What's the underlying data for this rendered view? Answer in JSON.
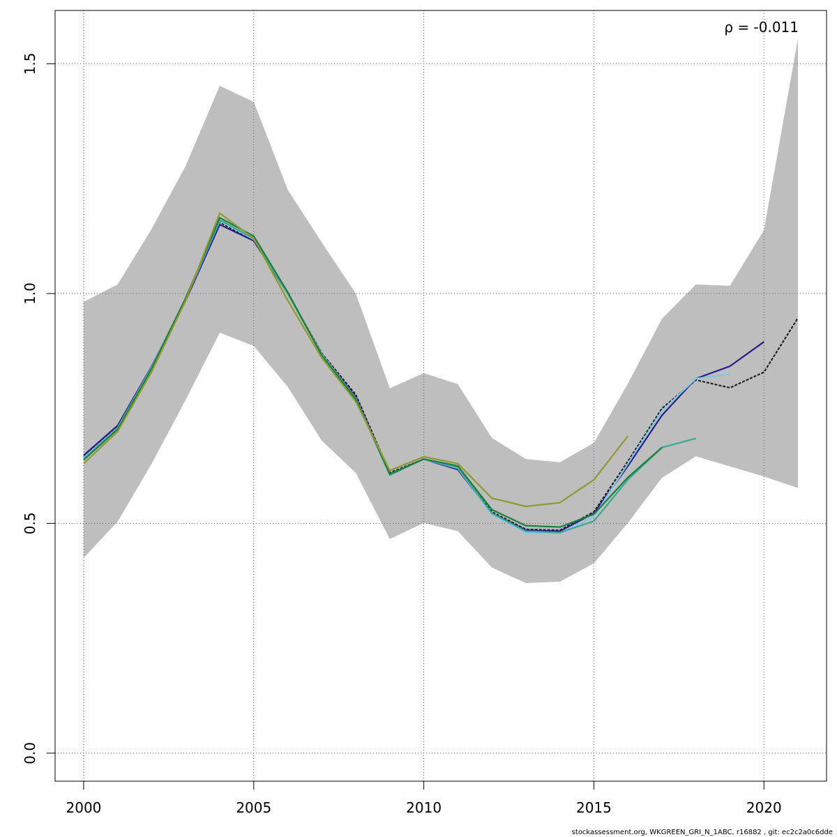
{
  "chart_data": {
    "type": "line",
    "annotation": "ρ = -0.011",
    "footer": "stockassessment.org, WKGREEN_GRI_N_1ABC, r16882 , git: ec2c2a0c6dde",
    "x": [
      2000,
      2001,
      2002,
      2003,
      2004,
      2005,
      2006,
      2007,
      2008,
      2009,
      2010,
      2011,
      2012,
      2013,
      2014,
      2015,
      2016,
      2017,
      2018,
      2019,
      2020,
      2021
    ],
    "band": {
      "color": "#bebebe",
      "upper": [
        0.982,
        1.02,
        1.141,
        1.278,
        1.452,
        1.417,
        1.226,
        1.111,
        1.0,
        0.794,
        0.827,
        0.803,
        0.686,
        0.64,
        0.633,
        0.675,
        0.804,
        0.945,
        1.02,
        1.017,
        1.138,
        1.555
      ],
      "lower": [
        0.425,
        0.504,
        0.63,
        0.769,
        0.915,
        0.886,
        0.797,
        0.68,
        0.61,
        0.466,
        0.501,
        0.483,
        0.404,
        0.37,
        0.373,
        0.413,
        0.501,
        0.599,
        0.646,
        0.624,
        0.602,
        0.577
      ]
    },
    "series": [
      {
        "color": "#222222",
        "dashed": true,
        "values": [
          0.645,
          0.71,
          0.84,
          0.99,
          1.155,
          1.115,
          1.0,
          0.87,
          0.78,
          0.61,
          0.64,
          0.62,
          0.525,
          0.487,
          0.485,
          0.525,
          0.635,
          0.75,
          0.812,
          0.795,
          0.829,
          0.947
        ]
      },
      {
        "color": "#2b1a8a",
        "values": [
          0.648,
          0.713,
          0.842,
          0.985,
          1.15,
          1.115,
          1.0,
          0.868,
          0.775,
          0.607,
          0.64,
          0.617,
          0.522,
          0.485,
          0.483,
          0.522,
          0.625,
          0.735,
          0.815,
          0.842,
          0.895,
          null
        ]
      },
      {
        "color": "#7ec8e3",
        "values": [
          0.643,
          0.708,
          0.84,
          0.988,
          1.158,
          1.118,
          1.0,
          0.868,
          0.772,
          0.607,
          0.64,
          0.62,
          0.52,
          0.48,
          0.478,
          0.515,
          0.63,
          0.745,
          0.815,
          0.825,
          null,
          null
        ]
      },
      {
        "color": "#3aa895",
        "values": [
          0.64,
          0.706,
          0.838,
          0.99,
          1.16,
          1.12,
          1.0,
          0.866,
          0.772,
          0.605,
          0.64,
          0.622,
          0.522,
          0.483,
          0.48,
          0.505,
          0.595,
          0.665,
          0.685,
          null,
          null,
          null
        ]
      },
      {
        "color": "#1a8040",
        "values": [
          0.638,
          0.705,
          0.837,
          0.99,
          1.165,
          1.125,
          1.003,
          0.866,
          0.77,
          0.607,
          0.64,
          0.625,
          0.53,
          0.495,
          0.492,
          0.52,
          0.6,
          0.665,
          null,
          null,
          null,
          null
        ]
      },
      {
        "color": "#8f9a2e",
        "values": [
          0.63,
          0.7,
          0.83,
          0.985,
          1.175,
          1.12,
          0.985,
          0.86,
          0.765,
          0.615,
          0.645,
          0.63,
          0.555,
          0.537,
          0.545,
          0.595,
          0.69,
          null,
          null,
          null,
          null,
          null
        ]
      }
    ],
    "xlim": [
      1999.16,
      2021.84
    ],
    "ylim": [
      -0.061,
      1.616
    ],
    "xticks": [
      2000,
      2005,
      2010,
      2015,
      2020
    ],
    "yticks": [
      {
        "value": 0,
        "label": "0.0"
      },
      0.5,
      {
        "value": 1,
        "label": "1.0"
      },
      1.5
    ],
    "grid": true
  }
}
